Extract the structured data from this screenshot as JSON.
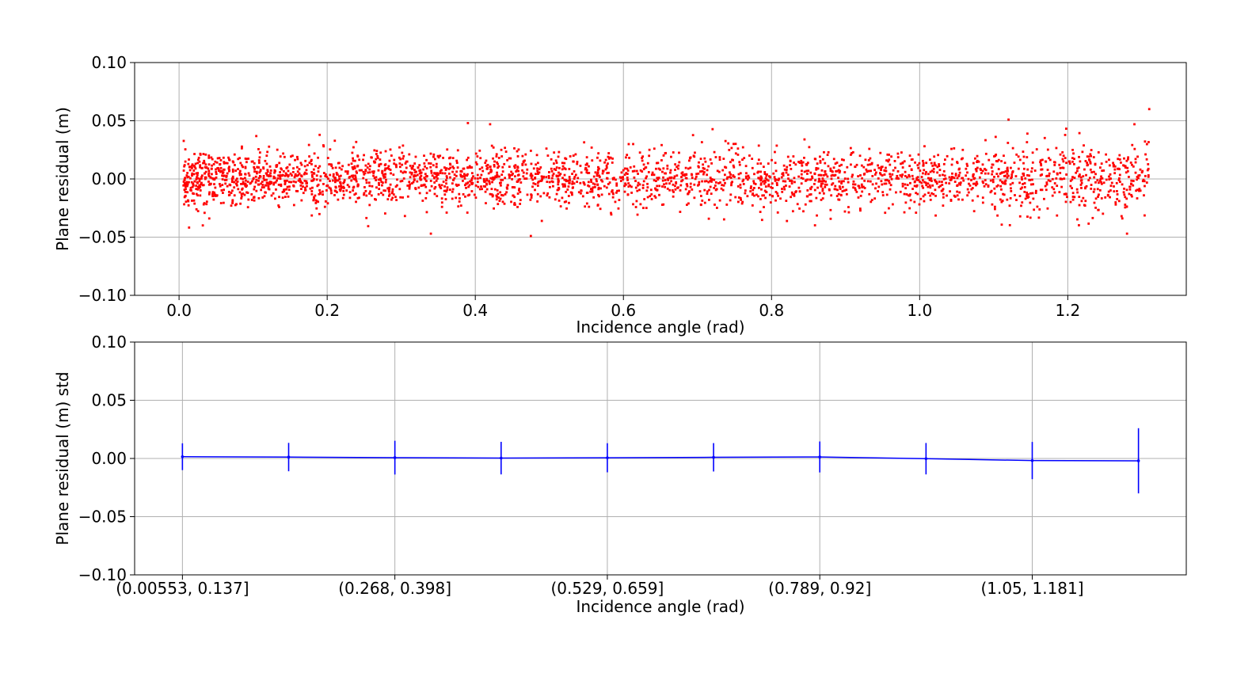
{
  "chart_data": [
    {
      "type": "scatter",
      "xlabel": "Incidence angle (rad)",
      "ylabel": "Plane residual (m)",
      "xlim": [
        -0.06,
        1.36
      ],
      "ylim": [
        -0.1,
        0.1
      ],
      "xticks": [
        "0.0",
        "0.2",
        "0.4",
        "0.6",
        "0.8",
        "1.0",
        "1.2"
      ],
      "xtick_values": [
        0.0,
        0.2,
        0.4,
        0.6,
        0.8,
        1.0,
        1.2
      ],
      "yticks": [
        "0.10",
        "0.05",
        "0.00",
        "−0.05",
        "−0.10"
      ],
      "ytick_values": [
        0.1,
        0.05,
        0.0,
        -0.05,
        -0.1
      ],
      "grid": true,
      "color": "#ff0000",
      "approx_points": 3000,
      "x_range": [
        0.006,
        1.31
      ],
      "residual_std": 0.012,
      "notable_points": [
        {
          "x": 0.39,
          "y": 0.048
        },
        {
          "x": 0.42,
          "y": 0.047
        },
        {
          "x": 0.475,
          "y": -0.049
        },
        {
          "x": 0.34,
          "y": -0.047
        },
        {
          "x": 1.12,
          "y": 0.051
        },
        {
          "x": 1.31,
          "y": 0.06
        },
        {
          "x": 1.28,
          "y": -0.047
        },
        {
          "x": 1.29,
          "y": 0.047
        }
      ]
    },
    {
      "type": "line",
      "xlabel": "Incidence angle (rad)",
      "ylabel": "Plane residual (m) std",
      "ylim": [
        -0.1,
        0.1
      ],
      "yticks": [
        "0.10",
        "0.05",
        "0.00",
        "−0.05",
        "−0.10"
      ],
      "ytick_values": [
        0.1,
        0.05,
        0.0,
        -0.05,
        -0.1
      ],
      "xtick_labels": [
        "(0.00553, 0.137]",
        "(0.268, 0.398]",
        "(0.529, 0.659]",
        "(0.789, 0.92]",
        "(1.05, 1.181]"
      ],
      "xtick_indices": [
        0,
        2,
        4,
        6,
        8
      ],
      "grid": true,
      "color": "#0000ff",
      "bins": 10,
      "means": [
        0.0015,
        0.0012,
        0.0007,
        0.0003,
        0.0006,
        0.001,
        0.0013,
        -0.0002,
        -0.0018,
        -0.002
      ],
      "stds": [
        0.0115,
        0.0122,
        0.0145,
        0.014,
        0.0125,
        0.0122,
        0.0133,
        0.0135,
        0.016,
        0.028
      ]
    }
  ]
}
